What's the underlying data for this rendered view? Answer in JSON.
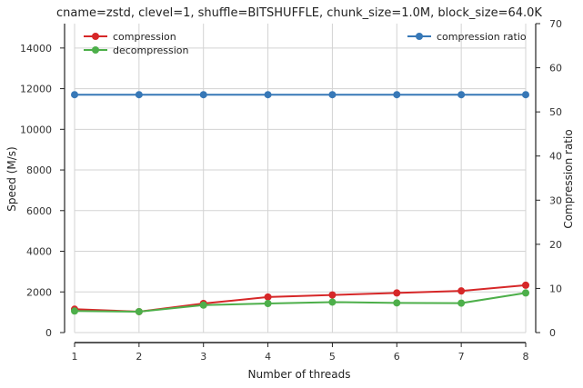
{
  "chart_data": {
    "type": "line",
    "title": "cname=zstd, clevel=1, shuffle=BITSHUFFLE, chunk_size=1.0M, block_size=64.0K",
    "xlabel": "Number of threads",
    "ylabel": "Speed (M/s)",
    "y2label": "Compression ratio",
    "x": [
      1,
      2,
      3,
      4,
      5,
      6,
      7,
      8
    ],
    "xlim": [
      1,
      8
    ],
    "ylim": [
      0,
      15200
    ],
    "y2lim": [
      0,
      70
    ],
    "xticks": [
      1,
      2,
      3,
      4,
      5,
      6,
      7,
      8
    ],
    "yticks": [
      0,
      2000,
      4000,
      6000,
      8000,
      10000,
      12000,
      14000
    ],
    "y2ticks": [
      0,
      10,
      20,
      30,
      40,
      50,
      60,
      70
    ],
    "grid": true,
    "series": [
      {
        "name": "compression",
        "axis": "left",
        "color": "#d62728",
        "values": [
          1150,
          1030,
          1430,
          1750,
          1850,
          1950,
          2050,
          2330
        ]
      },
      {
        "name": "decompression",
        "axis": "left",
        "color": "#4daf4a",
        "values": [
          1060,
          1030,
          1350,
          1430,
          1500,
          1460,
          1450,
          1950
        ]
      },
      {
        "name": "compression ratio",
        "axis": "right",
        "color": "#3778b7",
        "values": [
          53.9,
          53.9,
          53.9,
          53.9,
          53.9,
          53.9,
          53.9,
          53.9
        ]
      }
    ],
    "legend_left": "top-left",
    "legend_right": "top-right"
  }
}
